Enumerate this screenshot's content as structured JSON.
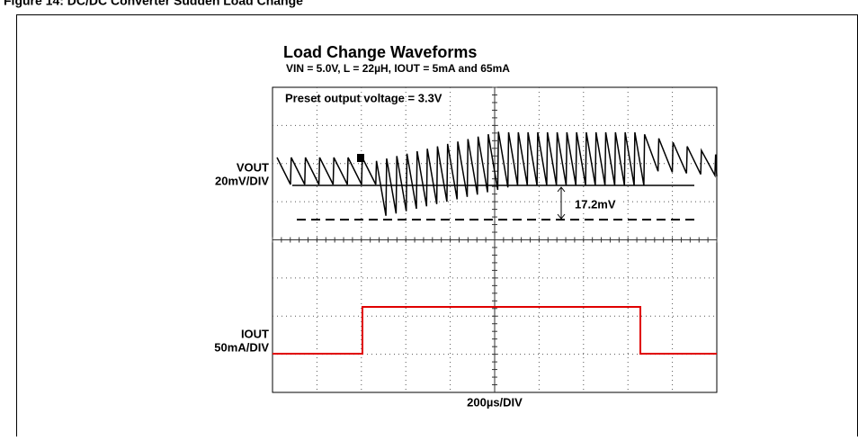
{
  "caption": "Figure 14: DC/DC Converter Sudden Load Change",
  "figure": {
    "title": "Load Change Waveforms",
    "subtitle": "VIN = 5.0V, L = 22µH, IOUT = 5mA and 65mA",
    "annotation": "Preset output voltage = 3.3V",
    "vout_label": "VOUT",
    "vout_scale": "20mV/DIV",
    "ripple_label": "17.2mV",
    "iout_label": "IOUT",
    "iout_scale": "50mA/DIV",
    "time_scale": "200µs/DIV"
  }
}
